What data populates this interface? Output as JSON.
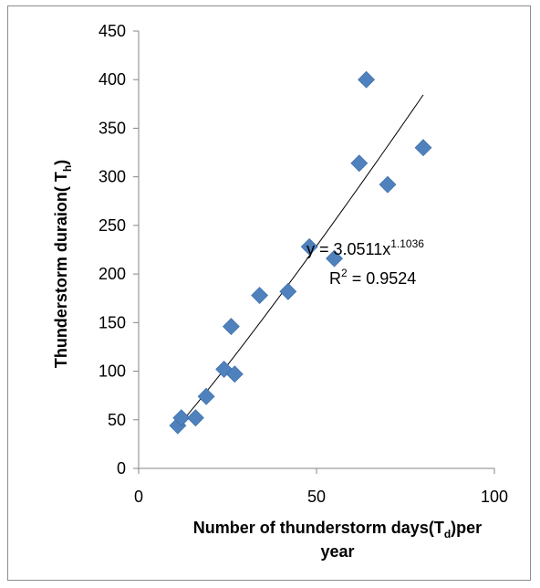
{
  "chart_data": {
    "type": "scatter",
    "xlabel": {
      "prefix": "Number of thunderstorm  days(T",
      "subscript": "d",
      "suffix": ")per",
      "line2": "year"
    },
    "ylabel": {
      "prefix": "Thunderstorm duraion( T",
      "subscript": "h",
      "suffix": ")"
    },
    "xlim": [
      0,
      100
    ],
    "ylim": [
      0,
      450
    ],
    "x_ticks": [
      0,
      50,
      100
    ],
    "y_ticks": [
      0,
      50,
      100,
      150,
      200,
      250,
      300,
      350,
      400,
      450
    ],
    "grid": false,
    "legend": "none",
    "marker_color": "#4f81bd",
    "trendline_color": "#000000",
    "series": [
      {
        "points": [
          {
            "x": 11,
            "y": 44
          },
          {
            "x": 12,
            "y": 52
          },
          {
            "x": 16,
            "y": 52
          },
          {
            "x": 19,
            "y": 74
          },
          {
            "x": 24,
            "y": 102
          },
          {
            "x": 26,
            "y": 146
          },
          {
            "x": 27,
            "y": 97
          },
          {
            "x": 34,
            "y": 178
          },
          {
            "x": 42,
            "y": 182
          },
          {
            "x": 48,
            "y": 228
          },
          {
            "x": 55,
            "y": 216
          },
          {
            "x": 62,
            "y": 314
          },
          {
            "x": 64,
            "y": 400
          },
          {
            "x": 70,
            "y": 292
          },
          {
            "x": 80,
            "y": 330
          }
        ]
      }
    ],
    "trendline": {
      "type": "power",
      "coefficient": 3.0511,
      "exponent": 1.1036,
      "x_range": [
        11,
        80
      ],
      "equation_base": "y = 3.0511x",
      "equation_exponent": "1.1036",
      "r2_base": "R",
      "r2_exponent": "2",
      "r2_value": " = 0.9524"
    }
  }
}
